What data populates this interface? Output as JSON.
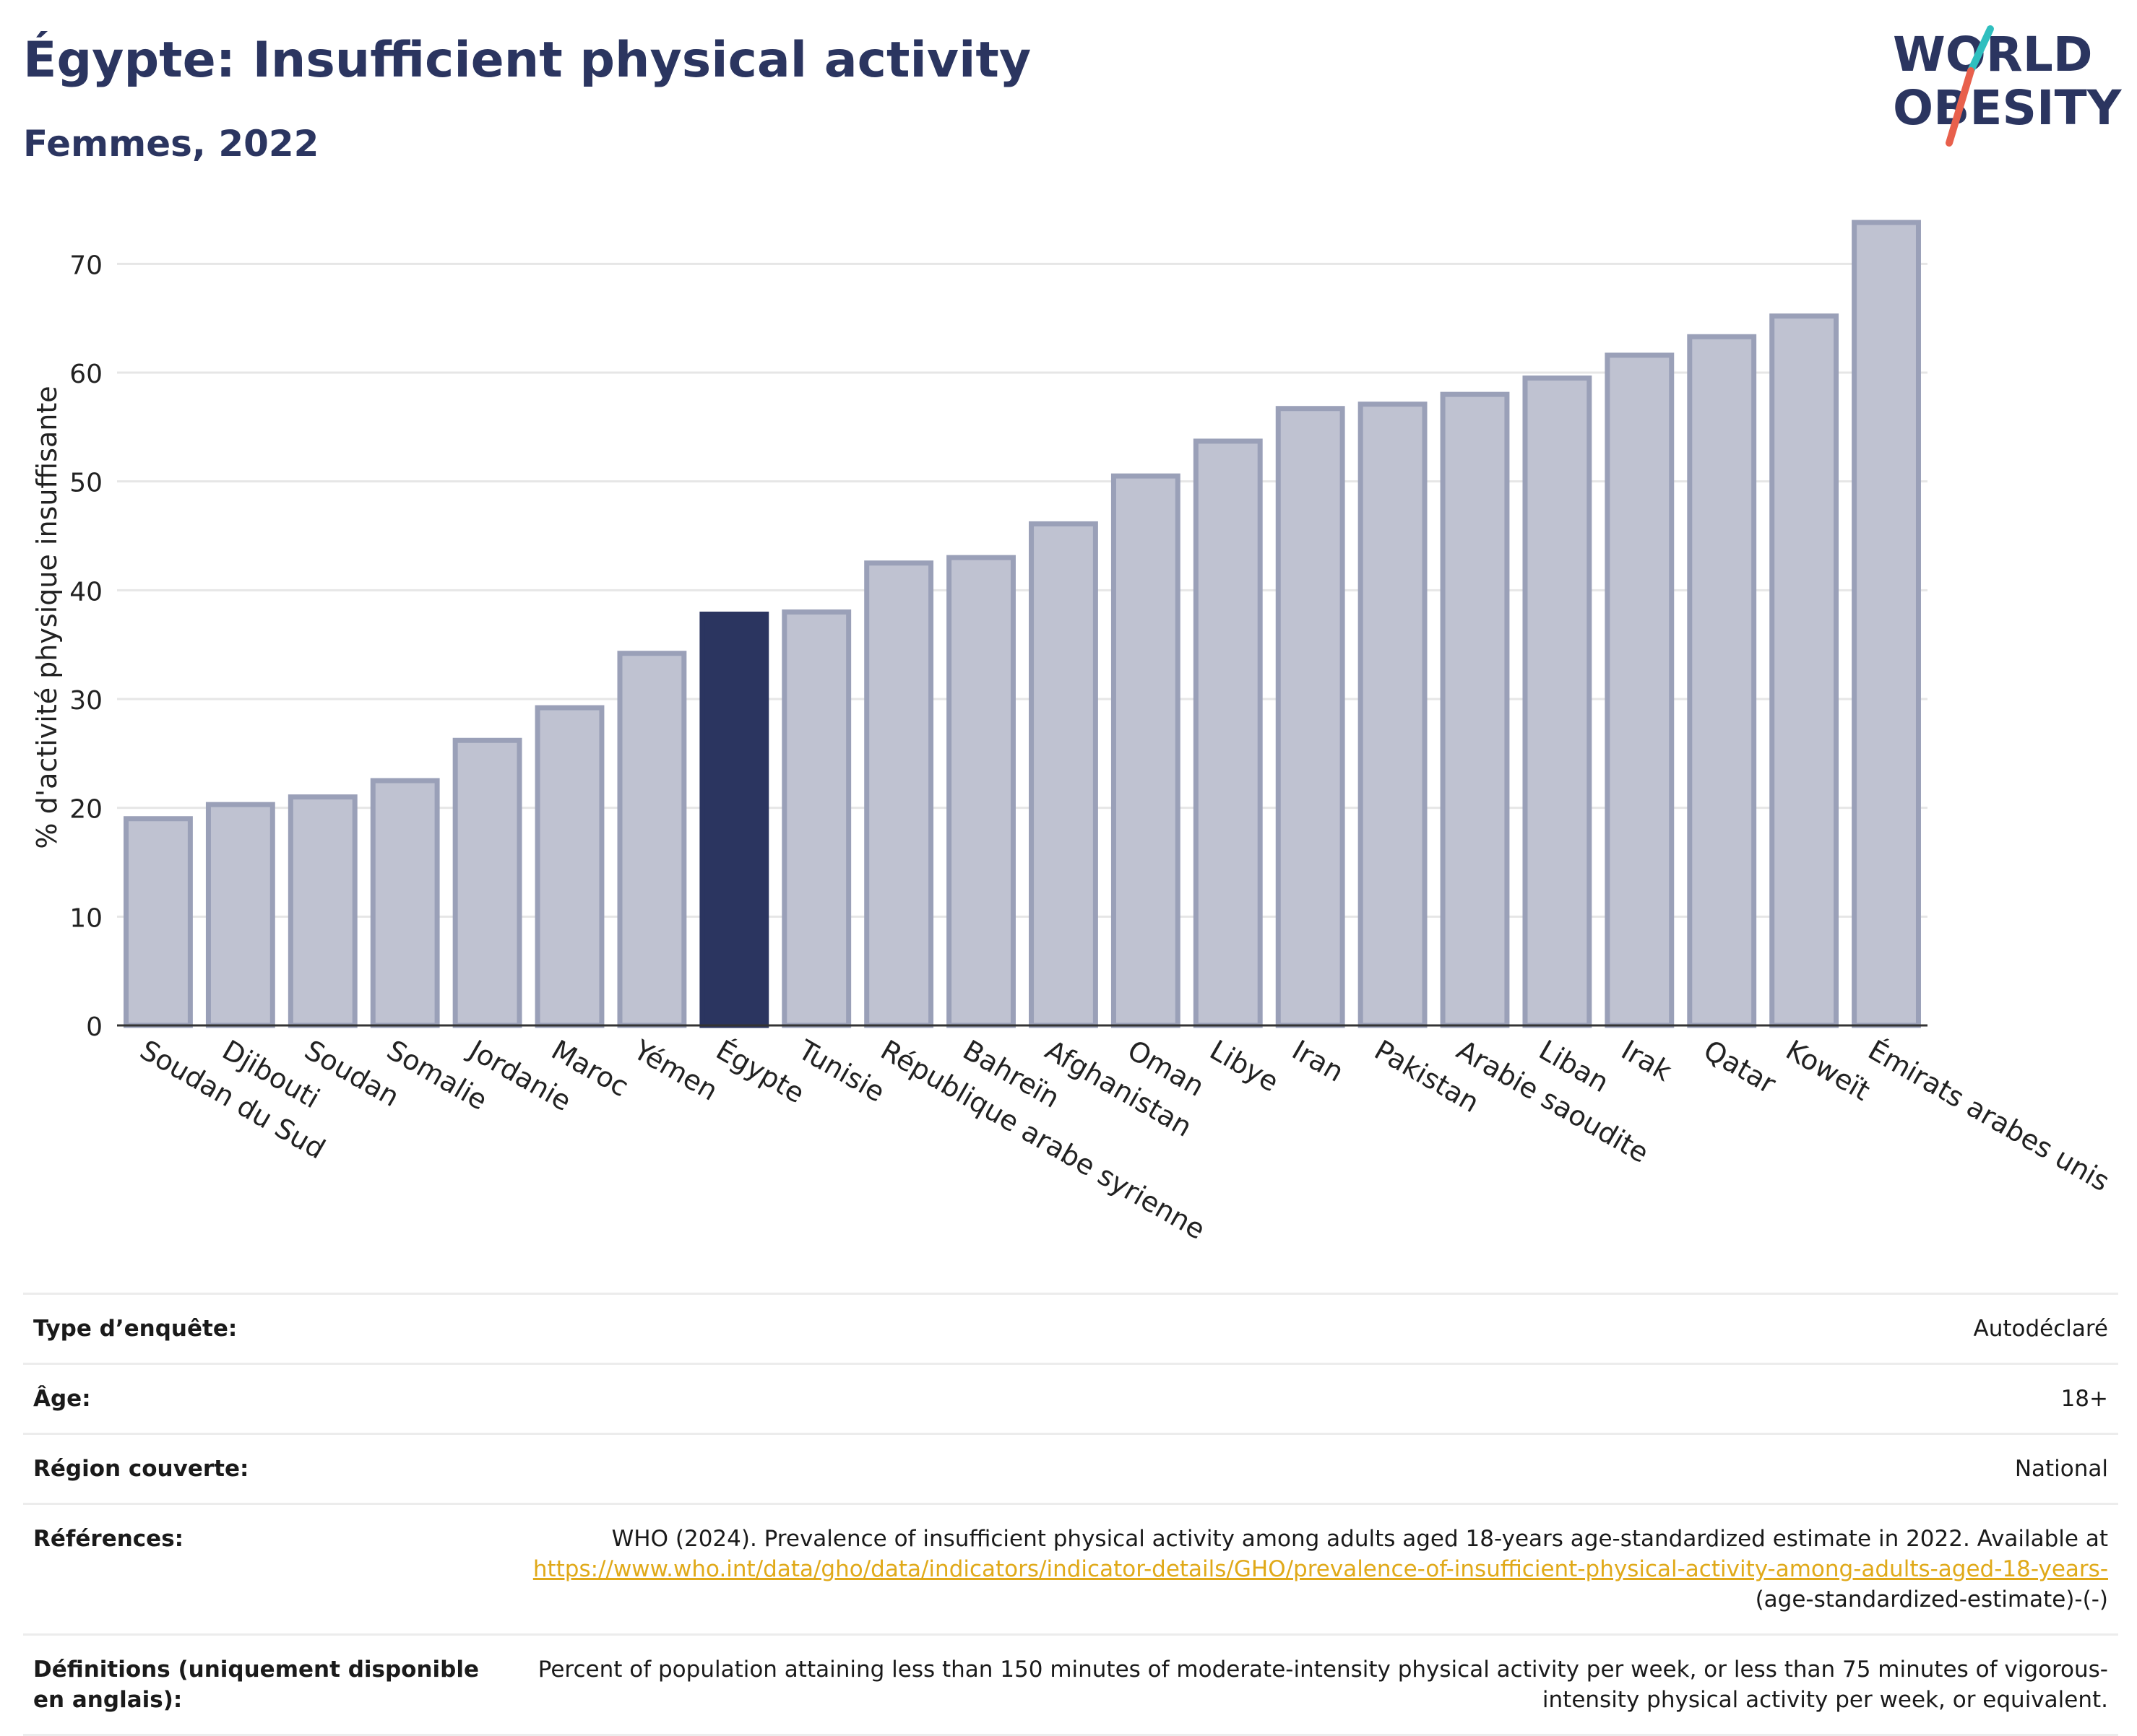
{
  "header": {
    "title": "Égypte: Insufficient physical activity",
    "subtitle": "Femmes, 2022",
    "logo_line1": "WORLD",
    "logo_line2": "OBESITY"
  },
  "colors": {
    "bar": "#bfc2d1",
    "bar_border": "#9aa0b8",
    "highlight": "#2b3560",
    "grid": "#e6e6e6",
    "link": "#e0a919",
    "logo_teal": "#2fbfbf",
    "logo_coral": "#e8604c"
  },
  "chart_data": {
    "type": "bar",
    "ylabel": "% d'activité physique insuffisante",
    "ylim": [
      0,
      75
    ],
    "yticks": [
      0,
      10,
      20,
      30,
      40,
      50,
      60,
      70
    ],
    "highlight": "Égypte",
    "categories": [
      "Soudan du Sud",
      "Djibouti",
      "Soudan",
      "Somalie",
      "Jordanie",
      "Maroc",
      "Yémen",
      "Égypte",
      "Tunisie",
      "République arabe syrienne",
      "Bahreïn",
      "Afghanistan",
      "Oman",
      "Libye",
      "Iran",
      "Pakistan",
      "Arabie saoudite",
      "Liban",
      "Irak",
      "Qatar",
      "Koweït",
      "Émirats arabes unis"
    ],
    "values": [
      19.0,
      20.3,
      21.0,
      22.5,
      26.2,
      29.2,
      34.2,
      37.8,
      38.0,
      42.5,
      43.0,
      46.1,
      50.5,
      53.7,
      56.7,
      57.1,
      58.0,
      59.5,
      61.6,
      63.3,
      65.2,
      73.8
    ]
  },
  "info": {
    "survey_label": "Type d’enquête:",
    "survey_value": "Autodéclaré",
    "age_label": "Âge:",
    "age_value": "18+",
    "region_label": "Région couverte:",
    "region_value": "National",
    "ref_label": "Références:",
    "ref_text": "WHO (2024). Prevalence of insufficient physical activity among adults aged 18-years age-standardized estimate in 2022. Available at",
    "ref_link": "https://www.who.int/data/gho/data/indicators/indicator-details/GHO/prevalence-of-insufficient-physical-activity-among-adults-aged-18-years-",
    "ref_tail": "(age-standardized-estimate)-(-)",
    "def_label": "Définitions (uniquement disponible en anglais):",
    "def_text": "Percent of population attaining less than 150 minutes of moderate-intensity physical activity per week, or less than 75 minutes of vigorous-intensity physical activity per week, or equivalent."
  }
}
